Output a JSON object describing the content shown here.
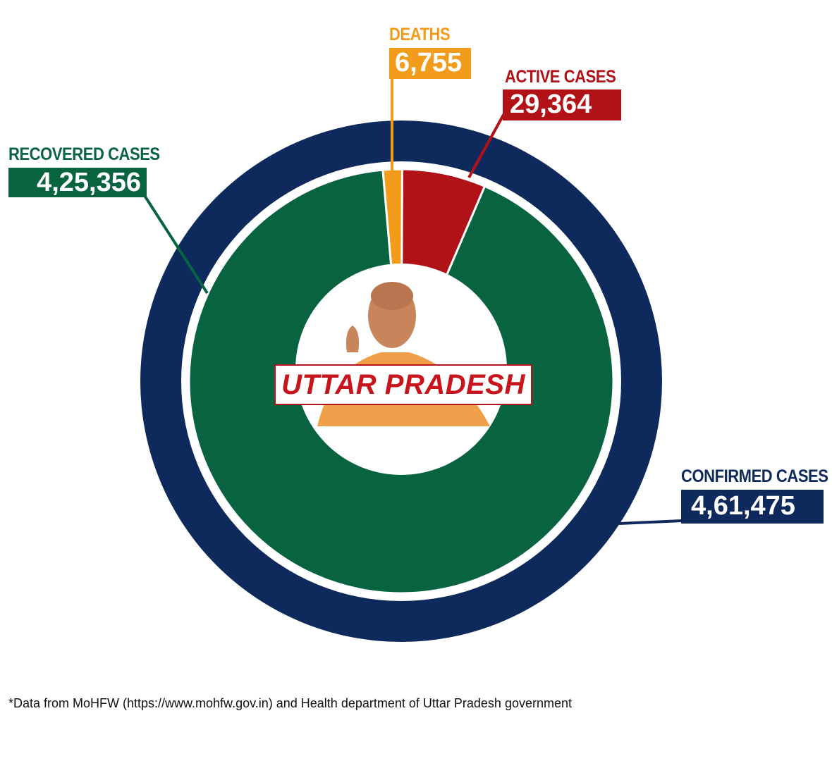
{
  "chart_data": {
    "type": "pie",
    "title": "UTTAR PRADESH",
    "total": {
      "label": "CONFIRMED CASES",
      "value": 461475,
      "display": "4,61,475",
      "color": "#0e2a5c"
    },
    "slices": [
      {
        "label": "RECOVERED CASES",
        "value": 425356,
        "display": "4,25,356",
        "color": "#076340"
      },
      {
        "label": "DEATHS",
        "value": 6755,
        "display": "6,755",
        "color": "#f39c1b"
      },
      {
        "label": "ACTIVE CASES",
        "value": 29364,
        "display": "29,364",
        "color": "#b11218"
      }
    ]
  },
  "labels": {
    "recovered_title": "RECOVERED CASES",
    "recovered_value": "4,25,356",
    "deaths_title": "DEATHS",
    "deaths_value": "6,755",
    "active_title": "ACTIVE CASES",
    "active_value": "29,364",
    "confirmed_title": "CONFIRMED CASES",
    "confirmed_value": "4,61,475"
  },
  "center_title": "UTTAR PRADESH",
  "footnote": "*Data from MoHFW (https://www.mohfw.gov.in) and Health department of Uttar Pradesh government"
}
